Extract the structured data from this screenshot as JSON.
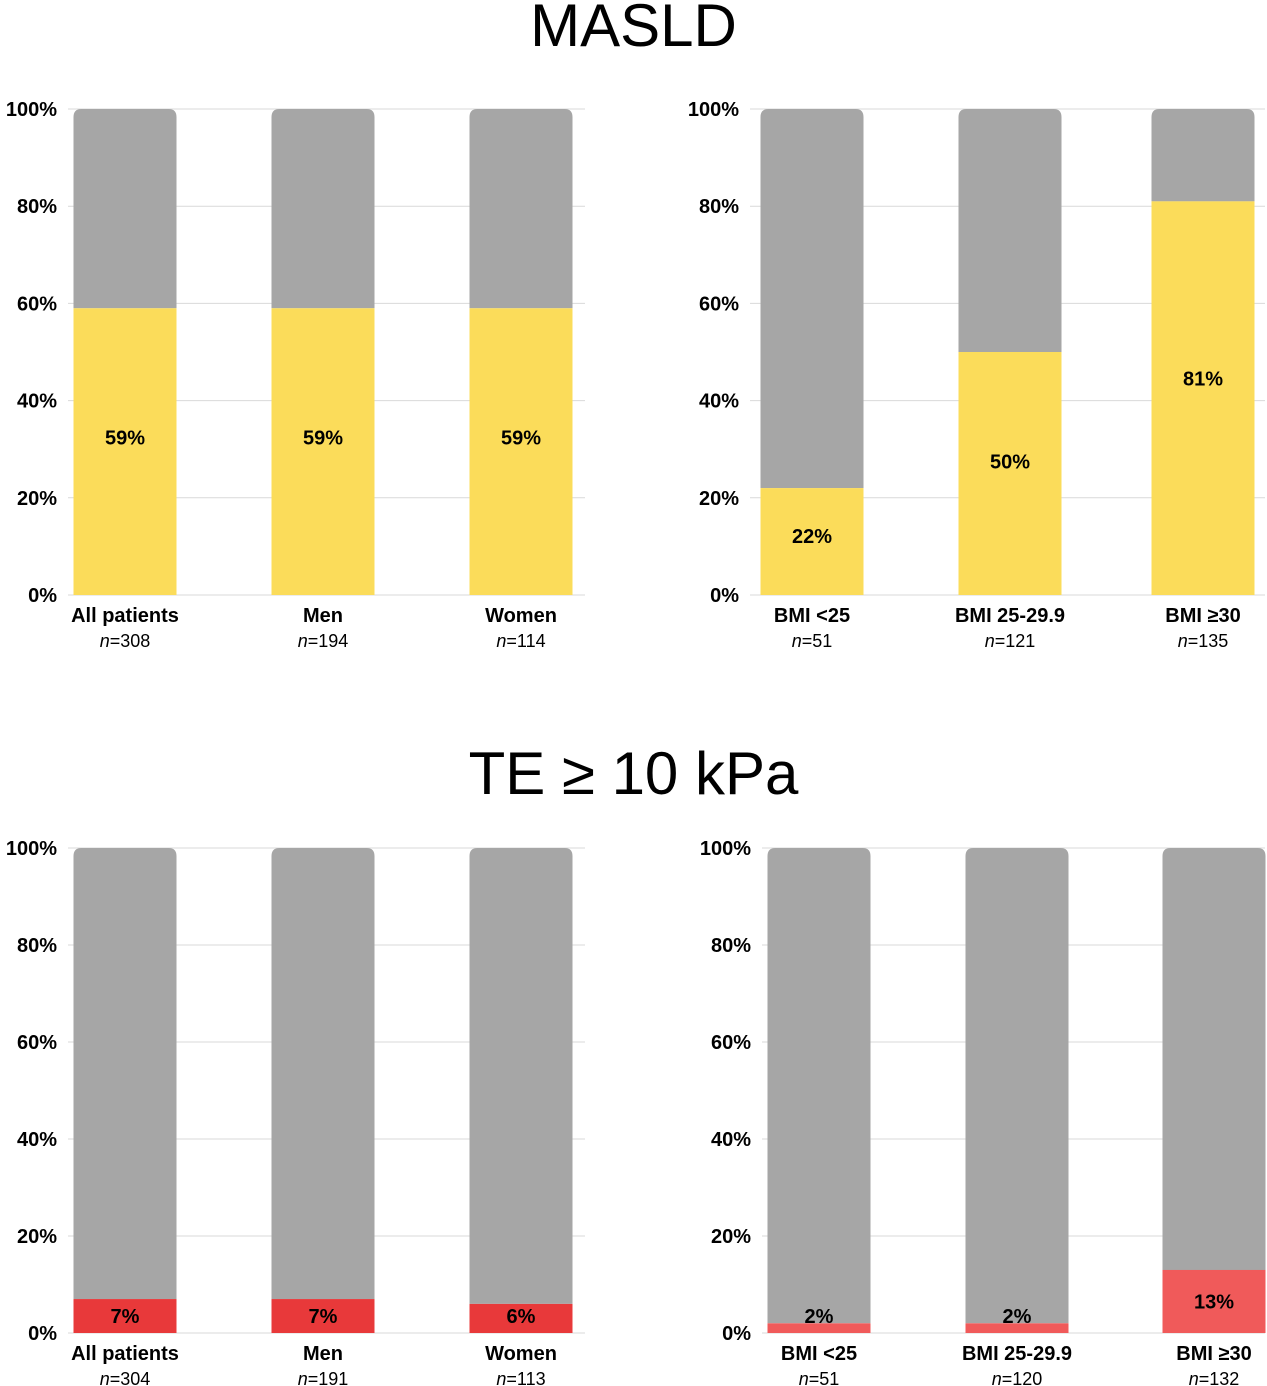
{
  "sections": [
    {
      "title": "MASLD"
    },
    {
      "title": "TE ≥ 10 kPa"
    }
  ],
  "colors": {
    "remainder": "#a6a6a6",
    "grid": "#d9d9d9",
    "masld": "#fbdc5a",
    "te_general": "#e8393a",
    "te_bmi": "#f05a5a"
  },
  "chart_data": [
    {
      "type": "bar",
      "stacked": true,
      "section": 0,
      "categories": [
        "All patients",
        "Men",
        "Women"
      ],
      "n": [
        "308",
        "194",
        "114"
      ],
      "values": [
        59,
        59,
        59
      ],
      "value_labels": [
        "59%",
        "59%",
        "59%"
      ],
      "ylim": [
        0,
        100
      ],
      "y_ticks": [
        "0%",
        "20%",
        "40%",
        "60%",
        "80%",
        "100%"
      ],
      "color": "#fbdc5a",
      "grid": true
    },
    {
      "type": "bar",
      "stacked": true,
      "section": 0,
      "categories": [
        "BMI <25",
        "BMI 25-29.9",
        "BMI ≥30"
      ],
      "n": [
        "51",
        "121",
        "135"
      ],
      "values": [
        22,
        50,
        81
      ],
      "value_labels": [
        "22%",
        "50%",
        "81%"
      ],
      "ylim": [
        0,
        100
      ],
      "y_ticks": [
        "0%",
        "20%",
        "40%",
        "60%",
        "80%",
        "100%"
      ],
      "color": "#fbdc5a",
      "grid": true
    },
    {
      "type": "bar",
      "stacked": true,
      "section": 1,
      "categories": [
        "All patients",
        "Men",
        "Women"
      ],
      "n": [
        "304",
        "191",
        "113"
      ],
      "values": [
        7,
        7,
        6
      ],
      "value_labels": [
        "7%",
        "7%",
        "6%"
      ],
      "ylim": [
        0,
        100
      ],
      "y_ticks": [
        "0%",
        "20%",
        "40%",
        "60%",
        "80%",
        "100%"
      ],
      "color": "#e8393a",
      "grid": true
    },
    {
      "type": "bar",
      "stacked": true,
      "section": 1,
      "categories": [
        "BMI <25",
        "BMI 25-29.9",
        "BMI ≥30"
      ],
      "n": [
        "51",
        "120",
        "132"
      ],
      "values": [
        2,
        2,
        13
      ],
      "value_labels": [
        "2%",
        "2%",
        "13%"
      ],
      "ylim": [
        0,
        100
      ],
      "y_ticks": [
        "0%",
        "20%",
        "40%",
        "60%",
        "80%",
        "100%"
      ],
      "color": "#f05a5a",
      "grid": true
    }
  ]
}
